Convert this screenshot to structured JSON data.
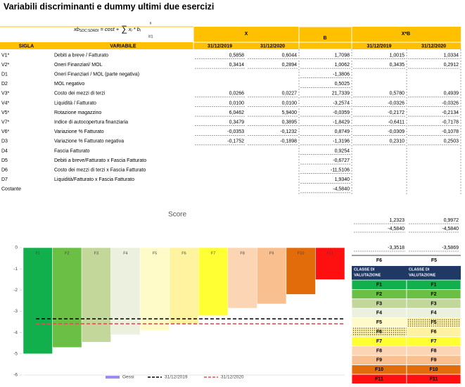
{
  "title": "Variabili discriminanti e dummy ultimi due esercizi",
  "formula": {
    "main": "xb",
    "sub": "SDC;SDRDI",
    "rest": "= cost +",
    "sigma": "∑",
    "sigma_top": "n",
    "sigma_bottom": "i=1",
    "term": "x",
    "term_sub": "i",
    "tail": "* b",
    "tail_sub": "i"
  },
  "table": {
    "group_headers": [
      "X",
      "B",
      "X*B"
    ],
    "headers": [
      "SIGLA",
      "VARIABILE",
      "31/12/2019",
      "31/12/2020",
      "31/12/2019",
      "31/12/2020"
    ],
    "rows": [
      [
        "V1*",
        "Debiti a breve / Fatturato",
        "0,5858",
        "0,6044",
        "1,7098",
        "1,0015",
        "1,0334"
      ],
      [
        "V2*",
        "Oneri Finanziari/ MOL",
        "0,3414",
        "0,2894",
        "1,0062",
        "0,3435",
        "0,2912"
      ],
      [
        "D1",
        "Oneri Finanziari / MOL (parte negativa)",
        null,
        null,
        "-1,3806",
        null,
        null
      ],
      [
        "D2",
        "MOL negativo",
        null,
        null,
        "0,5025",
        null,
        null
      ],
      [
        "V3*",
        "Costo dei mezzi di terzi",
        "0,0266",
        "0,0227",
        "21,7339",
        "0,5780",
        "0,4939"
      ],
      [
        "V4*",
        "Liquidità / Fatturato",
        "0,0100",
        "0,0100",
        "-3,2574",
        "-0,0326",
        "-0,0326"
      ],
      [
        "V5*",
        "Rotazione magazzino",
        "6,0462",
        "5,9400",
        "-0,0359",
        "-0,2172",
        "-0,2134"
      ],
      [
        "V7*",
        "Indice di autocopertura finanziaria",
        "0,3479",
        "0,3895",
        "-1,8429",
        "-0,6411",
        "-0,7178"
      ],
      [
        "V6*",
        "Variazione % Fatturato",
        "-0,0353",
        "-0,1232",
        "0,8749",
        "-0,0309",
        "-0,1078"
      ],
      [
        "D3",
        "Variazione % Fatturato negativa",
        "-0,1752",
        "-0,1898",
        "-1,3196",
        "0,2310",
        "0,2503"
      ],
      [
        "D4",
        "Fascia Fatturato",
        null,
        null,
        "0,9254",
        null,
        null
      ],
      [
        "D5",
        "Debiti a breve/Fatturato x Fascia Fatturato",
        null,
        null,
        "-0,6727",
        null,
        null
      ],
      [
        "D6",
        "Costo dei mezzi di terzi x Fascia Fatturato",
        null,
        null,
        "-11,5106",
        null,
        null
      ],
      [
        "D7",
        "Liquidità/Fatturato x Fascia Fatturato",
        null,
        null,
        "1,9340",
        null,
        null
      ],
      [
        "Costante",
        null,
        null,
        null,
        "-4,5840",
        null,
        null
      ]
    ]
  },
  "side": {
    "rows": [
      [
        "1,2323",
        "0,9972"
      ],
      [
        "-4,5840",
        "-4,5840"
      ],
      [
        "-3,3518",
        "-3,5869"
      ],
      [
        "F6",
        "F5"
      ]
    ]
  },
  "classes": {
    "headers": [
      [
        "CLASSE DI",
        "VALUTAZIONE"
      ],
      [
        "CLASSE DI",
        "VALUTAZIONE"
      ]
    ],
    "rows": [
      "F1",
      "F2",
      "F3",
      "F4",
      "F5",
      "F6",
      "F7",
      "F8",
      "F9",
      "F10",
      "F11"
    ]
  },
  "chart_data": {
    "type": "bar",
    "title": "Score",
    "categories": [
      "F1",
      "F2",
      "F3",
      "F4",
      "F5",
      "F6",
      "F7",
      "F8",
      "F9",
      "F10",
      "F11"
    ],
    "series": [
      {
        "name": "Gessi",
        "color": "#9b8cf0",
        "values": [
          -5,
          -4.7,
          -4.45,
          -4.1,
          -3.9,
          -3.6,
          -3.2,
          -2.85,
          -2.65,
          -2.2,
          -1.5
        ],
        "colors": [
          "#12b04c",
          "#6cbf45",
          "#c4d79b",
          "#ebf1de",
          "#fffbc8",
          "#fff3a0",
          "#ffff33",
          "#fcd5b4",
          "#fabf8f",
          "#e26b0a",
          "#ff1010"
        ]
      }
    ],
    "lines": [
      {
        "name": "31/12/2019",
        "value": -3.3518,
        "color": "#000000"
      },
      {
        "name": "31/12/2020",
        "value": -3.5869,
        "color": "#e05050"
      }
    ],
    "ylim": [
      -6,
      0
    ],
    "yticks": [
      0,
      -1,
      -2,
      -3,
      -4,
      -5,
      -6
    ],
    "legend": "bottom"
  }
}
